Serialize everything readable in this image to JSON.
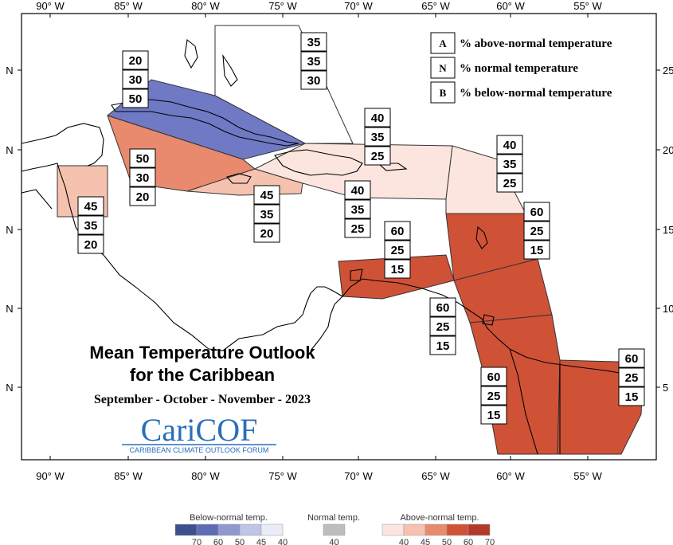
{
  "title": {
    "line1": "Mean Temperature Outlook",
    "line2": "for the Caribbean",
    "period": "September - October - November - 2023"
  },
  "logo": {
    "name": "CariCOF",
    "tagline": "CARIBBEAN CLIMATE OUTLOOK FORUM",
    "color": "#2a6eb8"
  },
  "axes": {
    "longitude_labels": [
      "90° W",
      "85° W",
      "80° W",
      "75° W",
      "70° W",
      "65° W",
      "60° W",
      "55° W"
    ],
    "latitude_label_left": "N",
    "latitude_labels_right": [
      "25",
      "20",
      "15",
      "10",
      "5"
    ]
  },
  "legend": {
    "items": [
      {
        "key": "A",
        "text": "% above-normal temperature"
      },
      {
        "key": "N",
        "text": "% normal temperature"
      },
      {
        "key": "B",
        "text": "% below-normal temperature"
      }
    ]
  },
  "colorbar": {
    "below": {
      "title": "Below-normal temp.",
      "ticks": [
        "70",
        "60",
        "50",
        "45",
        "40"
      ],
      "colors": [
        "#3d4f8c",
        "#5c6cb5",
        "#8f99cf",
        "#bfc5e6",
        "#e9ecf7"
      ]
    },
    "normal": {
      "title": "Normal temp.",
      "ticks": [
        "40"
      ],
      "colors": [
        "#bdbdbd"
      ]
    },
    "above": {
      "title": "Above-normal temp.",
      "ticks": [
        "40",
        "45",
        "50",
        "60",
        "70"
      ],
      "colors": [
        "#fbe5de",
        "#f6c2b0",
        "#e98a6e",
        "#cf5237",
        "#b23a2a"
      ]
    }
  },
  "regions": [
    {
      "name": "bahamas",
      "above": "35",
      "normal": "35",
      "below": "30",
      "color": "#ffffff"
    },
    {
      "name": "cuba",
      "above": "20",
      "normal": "30",
      "below": "50",
      "color": "#7079c4"
    },
    {
      "name": "cayman",
      "above": "50",
      "normal": "30",
      "below": "20",
      "color": "#e98a6e"
    },
    {
      "name": "belize",
      "above": "45",
      "normal": "35",
      "below": "20",
      "color": "#f6c2b0"
    },
    {
      "name": "jamaica",
      "above": "45",
      "normal": "35",
      "below": "20",
      "color": "#f6c2b0"
    },
    {
      "name": "hispaniola-puerto-rico",
      "above": "40",
      "normal": "35",
      "below": "25",
      "color": "#fbe5de"
    },
    {
      "name": "hispaniola-south",
      "above": "40",
      "normal": "35",
      "below": "25",
      "color": "#fbe5de"
    },
    {
      "name": "northern-lesser-antilles",
      "above": "40",
      "normal": "35",
      "below": "25",
      "color": "#fbe5de"
    },
    {
      "name": "windward-islands",
      "above": "60",
      "normal": "25",
      "below": "15",
      "color": "#cf5237"
    },
    {
      "name": "abc-islands",
      "above": "60",
      "normal": "25",
      "below": "15",
      "color": "#cf5237"
    },
    {
      "name": "trinidad-guyana-north",
      "above": "60",
      "normal": "25",
      "below": "15",
      "color": "#cf5237"
    },
    {
      "name": "guyana",
      "above": "60",
      "normal": "25",
      "below": "15",
      "color": "#cf5237"
    },
    {
      "name": "suriname-french-guiana",
      "above": "60",
      "normal": "25",
      "below": "15",
      "color": "#cf5237"
    }
  ]
}
